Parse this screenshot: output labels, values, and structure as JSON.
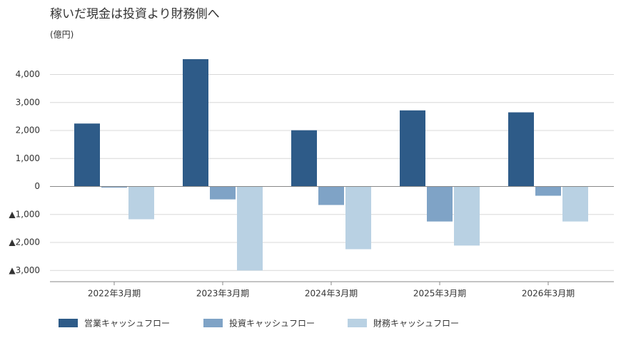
{
  "chart_data": {
    "type": "bar",
    "title": "稼いだ現金は投資より財務側へ",
    "y_label": "(億円)",
    "categories": [
      "2022年3月期",
      "2023年3月期",
      "2024年3月期",
      "2025年3月期",
      "2026年3月期"
    ],
    "series": [
      {
        "name": "営業キャッシュフロー",
        "color": "#2e5b88",
        "values": [
          2250,
          4550,
          2010,
          2720,
          2650
        ]
      },
      {
        "name": "投資キャッシュフロー",
        "color": "#7fa3c6",
        "values": [
          -40,
          -460,
          -660,
          -1250,
          -330
        ]
      },
      {
        "name": "財務キャッシュフロー",
        "color": "#b9d1e3",
        "values": [
          -1170,
          -3000,
          -2240,
          -2110,
          -1250
        ]
      }
    ],
    "ylim": [
      -3400,
      4600
    ],
    "yticks": [
      {
        "value": 4000,
        "label": "4,000"
      },
      {
        "value": 3000,
        "label": "3,000"
      },
      {
        "value": 2000,
        "label": "2,000"
      },
      {
        "value": 1000,
        "label": "1,000"
      },
      0,
      {
        "value": -1000,
        "label": "▲1,000"
      },
      {
        "value": -2000,
        "label": "▲2,000"
      },
      {
        "value": -3000,
        "label": "▲3,000"
      }
    ],
    "grid": true
  }
}
